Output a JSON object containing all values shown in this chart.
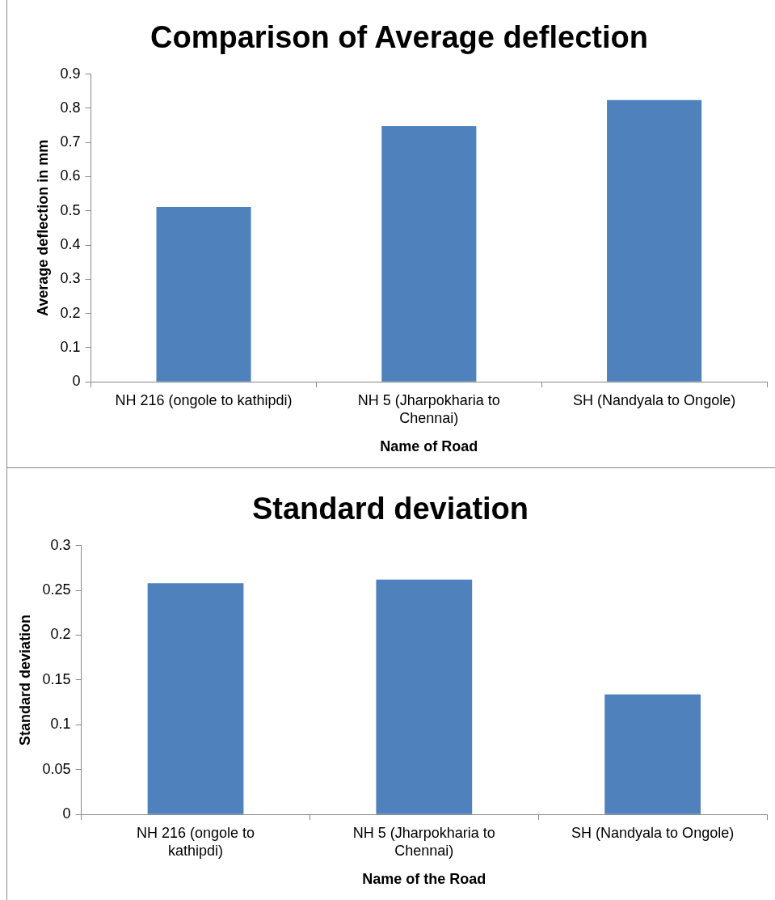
{
  "chart_data": [
    {
      "type": "bar",
      "title": "Comparison of Average deflection",
      "xlabel": "Name of Road",
      "ylabel": "Average deflection in mm",
      "categories": [
        "NH 216 (ongole to kathipdi)",
        "NH 5 (Jharpokharia to Chennai)",
        "SH (Nandyala to Ongole)"
      ],
      "values": [
        0.511,
        0.748,
        0.824
      ],
      "color": "#4f81bd",
      "ylim": [
        0,
        0.9
      ],
      "yticks": [
        0,
        0.1,
        0.2,
        0.3,
        0.4,
        0.5,
        0.6,
        0.7,
        0.8,
        0.9
      ],
      "grid": false,
      "legend": false
    },
    {
      "type": "bar",
      "title": "Standard deviation",
      "xlabel": "Name of the Road",
      "ylabel": "Standard deviation",
      "categories": [
        "NH 216 (ongole to kathipdi)",
        "NH 5 (Jharpokharia to Chennai)",
        "SH (Nandyala to Ongole)"
      ],
      "values": [
        0.258,
        0.262,
        0.134
      ],
      "color": "#4f81bd",
      "ylim": [
        0,
        0.3
      ],
      "yticks": [
        0,
        0.05,
        0.1,
        0.15,
        0.2,
        0.25,
        0.3
      ],
      "grid": false,
      "legend": false
    }
  ]
}
